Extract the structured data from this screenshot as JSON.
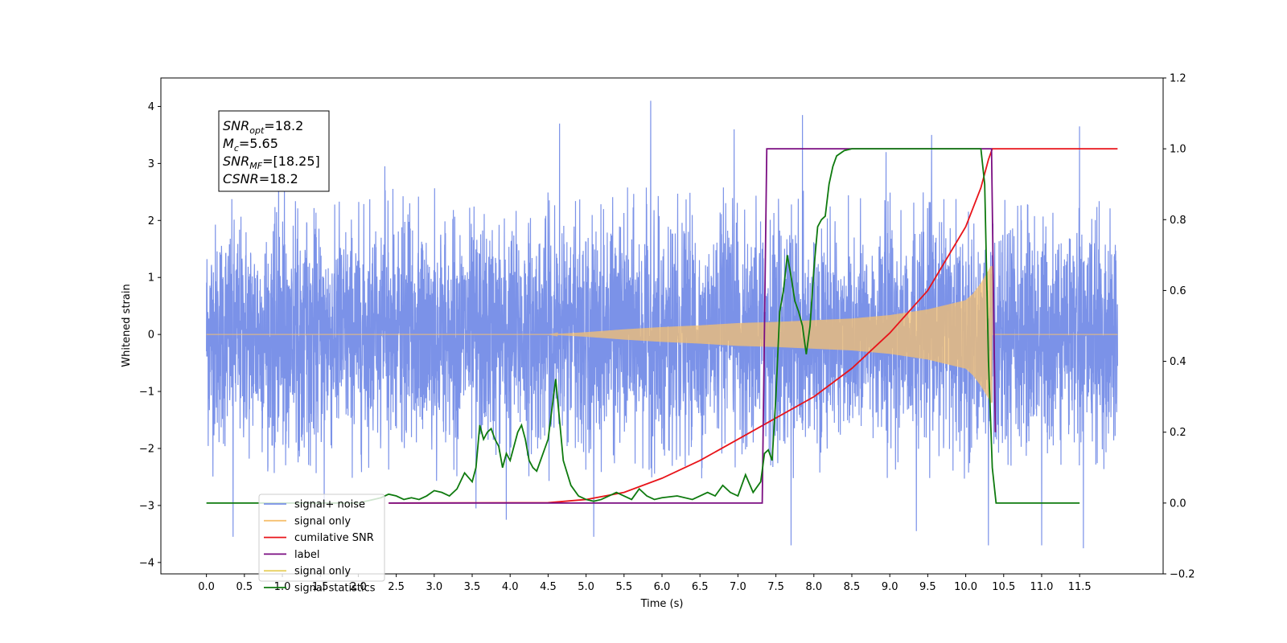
{
  "chart_data": {
    "type": "line",
    "xlabel": "Time (s)",
    "ylabel": "Whitened strain",
    "xlim": [
      -0.6,
      12.6
    ],
    "ylim": [
      -4.2,
      4.5
    ],
    "y2lim": [
      -0.2,
      1.2
    ],
    "x_ticks": [
      0.0,
      0.5,
      1.0,
      1.5,
      2.0,
      2.5,
      3.0,
      3.5,
      4.0,
      4.5,
      5.0,
      5.5,
      6.0,
      6.5,
      7.0,
      7.5,
      8.0,
      8.5,
      9.0,
      9.5,
      10.0,
      10.5,
      11.0,
      11.5
    ],
    "x_tick_labels": [
      "0.0",
      "0.5",
      "1.0",
      "1.5",
      "2.0",
      "2.5",
      "3.0",
      "3.5",
      "4.0",
      "4.5",
      "5.0",
      "5.5",
      "6.0",
      "6.5",
      "7.0",
      "7.5",
      "8.0",
      "8.5",
      "9.0",
      "9.5",
      "10.0",
      "10.5",
      "11.0",
      "11.5"
    ],
    "y_ticks": [
      -4,
      -3,
      -2,
      -1,
      0,
      1,
      2,
      3,
      4
    ],
    "y_tick_labels": [
      "−4",
      "−3",
      "−2",
      "−1",
      "0",
      "1",
      "2",
      "3",
      "4"
    ],
    "y2_ticks": [
      -0.2,
      0.0,
      0.2,
      0.4,
      0.6,
      0.8,
      1.0,
      1.2
    ],
    "y2_tick_labels": [
      "−0.2",
      "0.0",
      "0.2",
      "0.4",
      "0.6",
      "0.8",
      "1.0",
      "1.2"
    ],
    "grid": false,
    "legend_position": "lower-left",
    "annotation": {
      "lines": [
        {
          "main": "SNR",
          "sub": "opt",
          "rest": "=18.2"
        },
        {
          "main": "M",
          "sub": "c",
          "rest": "=5.65"
        },
        {
          "main": "SNR",
          "sub": "MF",
          "rest": "=[18.25]"
        },
        {
          "main": "CSNR",
          "sub": "",
          "rest": "=18.2"
        }
      ]
    },
    "series": [
      {
        "name": "signal+ noise",
        "color": "#7890e8",
        "axis": "left",
        "kind": "noise",
        "x_range": [
          0.0,
          12.0
        ],
        "std": 1.0,
        "peak_points": [
          [
            0.35,
            -3.55
          ],
          [
            0.95,
            2.9
          ],
          [
            1.55,
            -3.0
          ],
          [
            2.35,
            2.95
          ],
          [
            3.55,
            -3.05
          ],
          [
            3.95,
            -3.25
          ],
          [
            4.65,
            3.7
          ],
          [
            5.1,
            -3.55
          ],
          [
            5.85,
            4.1
          ],
          [
            6.95,
            3.6
          ],
          [
            7.7,
            -3.7
          ],
          [
            7.85,
            3.85
          ],
          [
            8.95,
            3.2
          ],
          [
            9.35,
            -3.45
          ],
          [
            9.55,
            3.5
          ],
          [
            10.3,
            -3.7
          ],
          [
            11.0,
            -3.7
          ],
          [
            11.5,
            3.65
          ],
          [
            11.55,
            -3.75
          ]
        ]
      },
      {
        "name": "signal only",
        "color": "#f5c070",
        "axis": "left",
        "kind": "chirp",
        "envelope_x": [
          0.0,
          4.5,
          5.0,
          5.5,
          6.0,
          6.5,
          7.0,
          7.5,
          8.0,
          8.5,
          9.0,
          9.5,
          10.0,
          10.1,
          10.2,
          10.3,
          10.33
        ],
        "envelope_amp": [
          0.0,
          0.0,
          0.04,
          0.09,
          0.13,
          0.16,
          0.2,
          0.22,
          0.25,
          0.28,
          0.34,
          0.44,
          0.6,
          0.72,
          0.9,
          1.12,
          1.2
        ]
      },
      {
        "name": "cumilative SNR",
        "color": "#e8141a",
        "axis": "right",
        "x": [
          2.4,
          4.5,
          5.0,
          5.5,
          6.0,
          6.5,
          7.0,
          7.5,
          8.0,
          8.5,
          9.0,
          9.5,
          10.0,
          10.2,
          10.3,
          10.35,
          12.0
        ],
        "values": [
          0.0,
          0.001,
          0.01,
          0.03,
          0.07,
          0.12,
          0.18,
          0.24,
          0.3,
          0.38,
          0.48,
          0.6,
          0.78,
          0.89,
          0.97,
          1.0,
          1.0
        ]
      },
      {
        "name": "label",
        "color": "#7b0e82",
        "axis": "right",
        "x": [
          2.4,
          7.32,
          7.38,
          10.34,
          10.39
        ],
        "values": [
          0.0,
          0.0,
          1.0,
          1.0,
          0.2
        ]
      },
      {
        "name": "signal statistics",
        "color": "#0e7a0e",
        "axis": "right",
        "x": [
          0.0,
          2.0,
          2.1,
          2.2,
          2.3,
          2.4,
          2.5,
          2.6,
          2.7,
          2.8,
          2.9,
          3.0,
          3.1,
          3.2,
          3.3,
          3.4,
          3.5,
          3.55,
          3.6,
          3.65,
          3.7,
          3.75,
          3.8,
          3.85,
          3.9,
          3.95,
          4.0,
          4.05,
          4.1,
          4.15,
          4.2,
          4.25,
          4.3,
          4.35,
          4.4,
          4.45,
          4.5,
          4.6,
          4.7,
          4.8,
          4.9,
          5.0,
          5.1,
          5.2,
          5.3,
          5.4,
          5.5,
          5.6,
          5.7,
          5.8,
          5.9,
          6.0,
          6.2,
          6.4,
          6.5,
          6.6,
          6.7,
          6.8,
          6.9,
          7.0,
          7.1,
          7.2,
          7.3,
          7.35,
          7.4,
          7.45,
          7.5,
          7.55,
          7.6,
          7.65,
          7.7,
          7.75,
          7.8,
          7.85,
          7.9,
          7.95,
          8.0,
          8.05,
          8.1,
          8.15,
          8.2,
          8.25,
          8.3,
          8.4,
          8.5,
          8.6,
          8.8,
          9.0,
          9.5,
          10.0,
          10.2,
          10.25,
          10.3,
          10.35,
          10.4,
          11.5
        ],
        "values": [
          0.0,
          0.0,
          0.005,
          0.01,
          0.015,
          0.025,
          0.02,
          0.01,
          0.015,
          0.01,
          0.02,
          0.035,
          0.03,
          0.02,
          0.04,
          0.085,
          0.06,
          0.1,
          0.22,
          0.18,
          0.2,
          0.21,
          0.18,
          0.16,
          0.1,
          0.14,
          0.12,
          0.16,
          0.2,
          0.22,
          0.18,
          0.12,
          0.1,
          0.09,
          0.12,
          0.15,
          0.18,
          0.35,
          0.12,
          0.05,
          0.02,
          0.01,
          0.005,
          0.01,
          0.02,
          0.03,
          0.02,
          0.01,
          0.04,
          0.02,
          0.01,
          0.015,
          0.02,
          0.01,
          0.02,
          0.03,
          0.02,
          0.05,
          0.03,
          0.02,
          0.08,
          0.03,
          0.06,
          0.14,
          0.15,
          0.12,
          0.3,
          0.54,
          0.6,
          0.7,
          0.64,
          0.57,
          0.54,
          0.5,
          0.42,
          0.5,
          0.66,
          0.78,
          0.8,
          0.81,
          0.9,
          0.95,
          0.98,
          0.995,
          1.0,
          1.0,
          1.0,
          1.0,
          1.0,
          1.0,
          1.0,
          0.9,
          0.4,
          0.1,
          0.0,
          0.0
        ]
      },
      {
        "name": "signal only",
        "color": "#e8d060",
        "axis": "left",
        "kind": "hidden"
      }
    ],
    "legend": [
      {
        "label": "signal+ noise",
        "color": "#7890e8"
      },
      {
        "label": "signal only",
        "color": "#f5c070"
      },
      {
        "label": "cumilative SNR",
        "color": "#e8141a"
      },
      {
        "label": "label",
        "color": "#7b0e82"
      },
      {
        "label": "signal only",
        "color": "#e8d060"
      },
      {
        "label": "signal statistics",
        "color": "#0e7a0e"
      }
    ]
  }
}
